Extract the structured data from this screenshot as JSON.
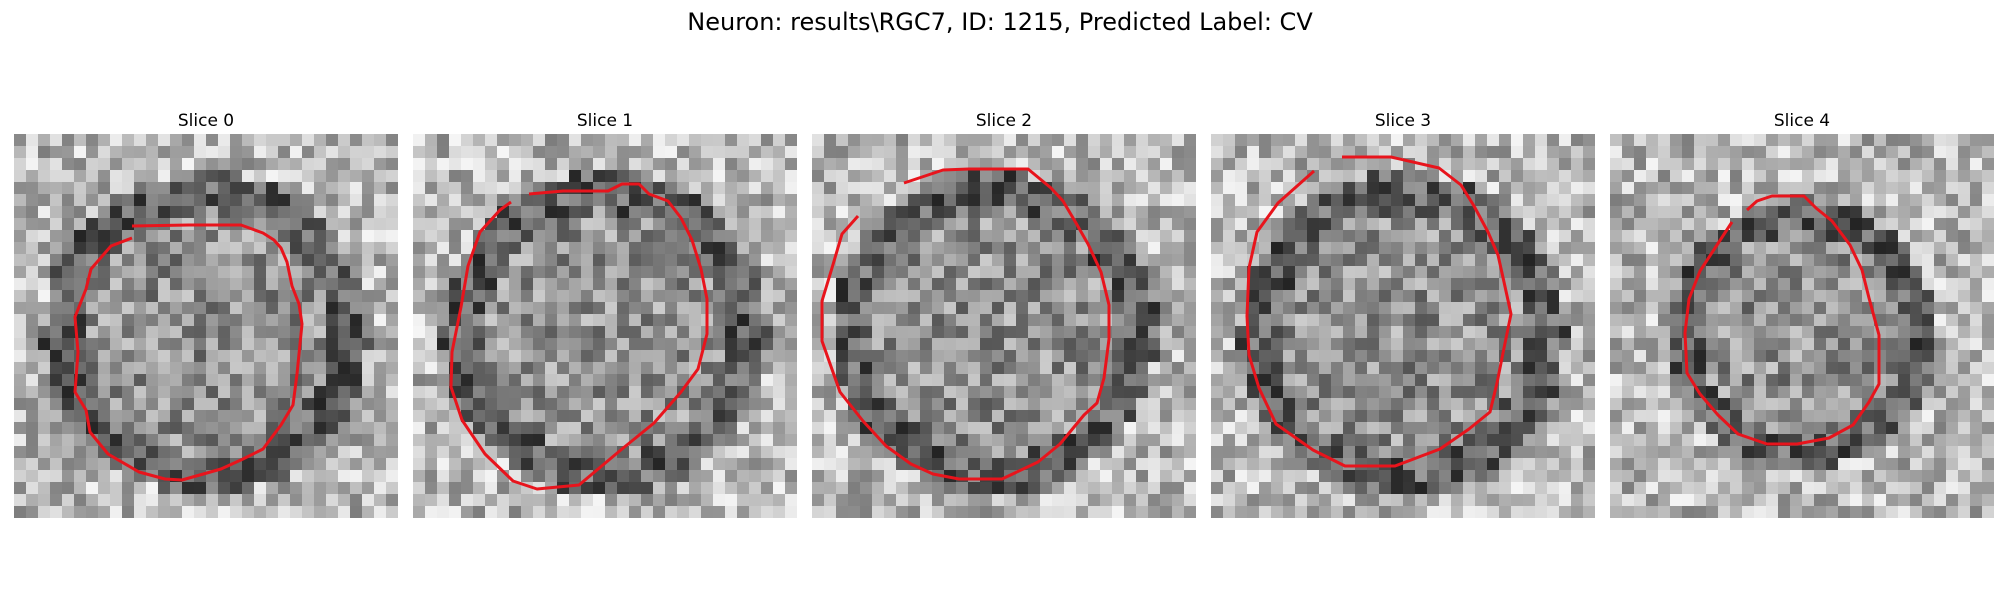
{
  "figure": {
    "title": "Neuron: results\\RGC7, ID: 1215, Predicted Label: CV"
  },
  "slices": [
    {
      "title": "Slice 0"
    },
    {
      "title": "Slice 1"
    },
    {
      "title": "Slice 2"
    },
    {
      "title": "Slice 3"
    },
    {
      "title": "Slice 4"
    }
  ],
  "contour_color": "#e8141c"
}
